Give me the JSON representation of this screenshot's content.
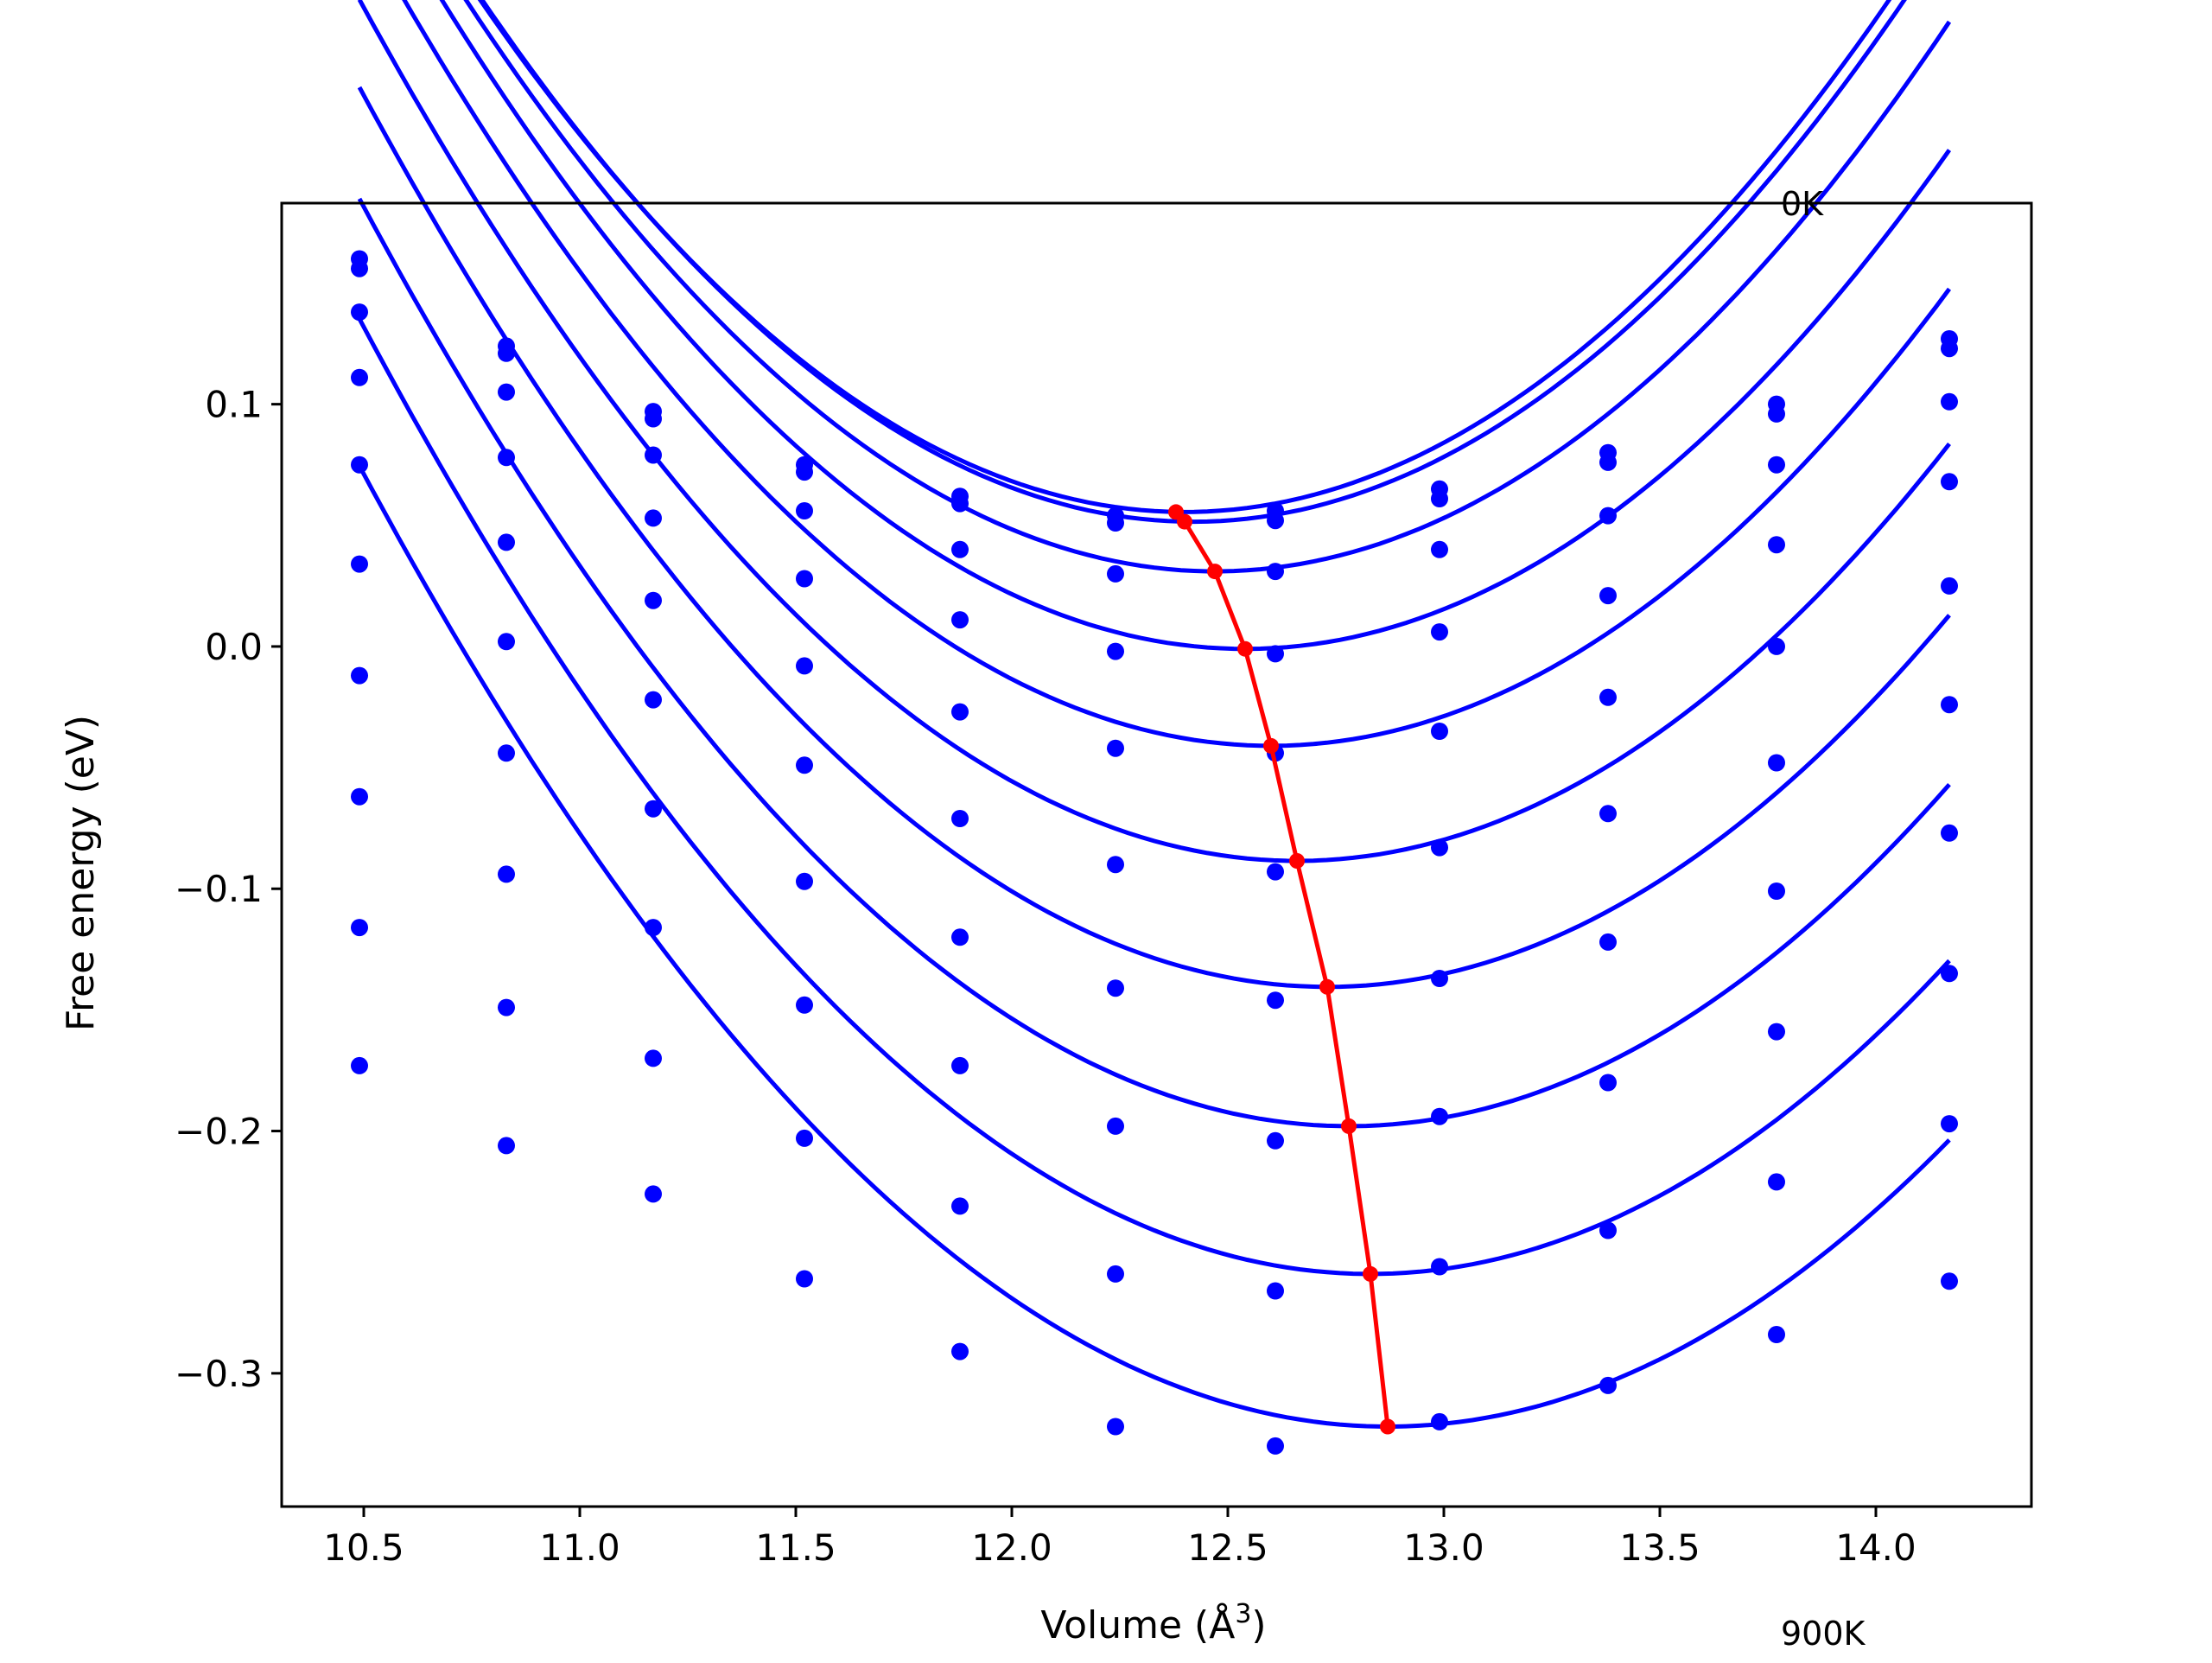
{
  "chart_data": {
    "type": "line",
    "xlabel": "Volume (Å",
    "xlabel_sup": "3",
    "xlabel_close": ")",
    "ylabel": "Free energy (eV)",
    "xlim": [
      10.31,
      14.36
    ],
    "ylim": [
      -0.355,
      0.183
    ],
    "x_ticks": [
      10.5,
      11.0,
      11.5,
      12.0,
      12.5,
      13.0,
      13.5,
      14.0
    ],
    "x_tick_labels": [
      "10.5",
      "11.0",
      "11.5",
      "12.0",
      "12.5",
      "13.0",
      "13.5",
      "14.0"
    ],
    "y_ticks": [
      -0.3,
      -0.2,
      -0.1,
      0.0,
      0.1
    ],
    "y_tick_labels": [
      "−0.3",
      "−0.2",
      "−0.1",
      "0.0",
      "0.1"
    ],
    "grid": false,
    "annotations": [
      {
        "text": "0K",
        "x": 13.78,
        "y": 0.183
      },
      {
        "text": "900K",
        "x": 13.78,
        "y": -0.407
      }
    ],
    "colors": {
      "curves": "#0000ff",
      "points": "#0000ff",
      "minimum_line": "#ff0000",
      "axes": "#000000"
    },
    "volumes": [
      10.49,
      10.83,
      11.17,
      11.52,
      11.88,
      12.24,
      12.61,
      12.99,
      13.38,
      13.77,
      14.17
    ],
    "series": [
      {
        "values": [
          0.16,
          0.124,
          0.097,
          0.075,
          0.062,
          0.054,
          0.056,
          0.065,
          0.08,
          0.1,
          0.127
        ],
        "fit": {
          "a": 0.0795,
          "vmin": 12.4,
          "fmin": 0.0555
        }
      },
      {
        "values": [
          0.156,
          0.121,
          0.094,
          0.072,
          0.059,
          0.051,
          0.052,
          0.061,
          0.076,
          0.096,
          0.123
        ],
        "fit": {
          "a": 0.0795,
          "vmin": 12.42,
          "fmin": 0.0515
        }
      },
      {
        "values": [
          0.138,
          0.105,
          0.079,
          0.056,
          0.04,
          0.03,
          0.031,
          0.04,
          0.054,
          0.075,
          0.101
        ],
        "fit": {
          "a": 0.0785,
          "vmin": 12.47,
          "fmin": 0.031
        }
      },
      {
        "values": [
          0.111,
          0.078,
          0.053,
          0.028,
          0.011,
          -0.002,
          -0.003,
          0.006,
          0.021,
          0.042,
          0.068
        ],
        "fit": {
          "a": 0.0775,
          "vmin": 12.54,
          "fmin": -0.001
        }
      },
      {
        "values": [
          0.075,
          0.043,
          0.019,
          -0.008,
          -0.027,
          -0.042,
          -0.044,
          -0.035,
          -0.021,
          0.0,
          0.025
        ],
        "fit": {
          "a": 0.0765,
          "vmin": 12.6,
          "fmin": -0.041
        }
      },
      {
        "values": [
          0.034,
          0.002,
          -0.022,
          -0.049,
          -0.071,
          -0.09,
          -0.093,
          -0.083,
          -0.069,
          -0.048,
          -0.024
        ],
        "fit": {
          "a": 0.0755,
          "vmin": 12.66,
          "fmin": -0.0885
        }
      },
      {
        "values": [
          -0.012,
          -0.044,
          -0.067,
          -0.097,
          -0.12,
          -0.141,
          -0.146,
          -0.137,
          -0.122,
          -0.101,
          -0.077
        ],
        "fit": {
          "a": 0.074,
          "vmin": 12.73,
          "fmin": -0.1405
        }
      },
      {
        "values": [
          -0.062,
          -0.094,
          -0.116,
          -0.148,
          -0.173,
          -0.198,
          -0.204,
          -0.194,
          -0.18,
          -0.159,
          -0.135
        ],
        "fit": {
          "a": 0.073,
          "vmin": 12.78,
          "fmin": -0.198
        }
      },
      {
        "values": [
          -0.116,
          -0.149,
          -0.17,
          -0.203,
          -0.231,
          -0.259,
          -0.266,
          -0.256,
          -0.241,
          -0.221,
          -0.197
        ],
        "fit": {
          "a": 0.072,
          "vmin": 12.83,
          "fmin": -0.259
        }
      },
      {
        "values": [
          -0.173,
          -0.206,
          -0.226,
          -0.261,
          -0.291,
          -0.322,
          -0.33,
          -0.32,
          -0.305,
          -0.284,
          -0.262
        ],
        "fit": {
          "a": 0.07,
          "vmin": 12.87,
          "fmin": -0.322
        }
      }
    ],
    "minimum_line": {
      "x": [
        12.38,
        12.4,
        12.47,
        12.54,
        12.6,
        12.66,
        12.73,
        12.78,
        12.83,
        12.87
      ],
      "y": [
        0.0555,
        0.0515,
        0.031,
        -0.001,
        -0.041,
        -0.0885,
        -0.1405,
        -0.198,
        -0.259,
        -0.322
      ]
    }
  }
}
